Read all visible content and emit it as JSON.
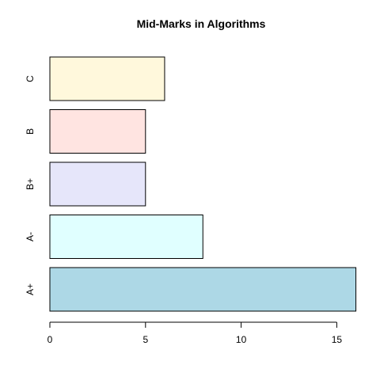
{
  "chart_data": {
    "type": "bar",
    "orientation": "horizontal",
    "title": "Mid-Marks in Algorithms",
    "xlabel": "",
    "ylabel": "",
    "categories": [
      "A+",
      "A-",
      "B+",
      "B",
      "C"
    ],
    "values": [
      16,
      8,
      5,
      5,
      6
    ],
    "colors": [
      "#add8e6",
      "#e0ffff",
      "#e6e6fa",
      "#ffe4e1",
      "#fff8dc"
    ],
    "xlim": [
      0,
      16
    ],
    "x_ticks": [
      0,
      5,
      10,
      15
    ],
    "grid": false,
    "legend": "none"
  }
}
